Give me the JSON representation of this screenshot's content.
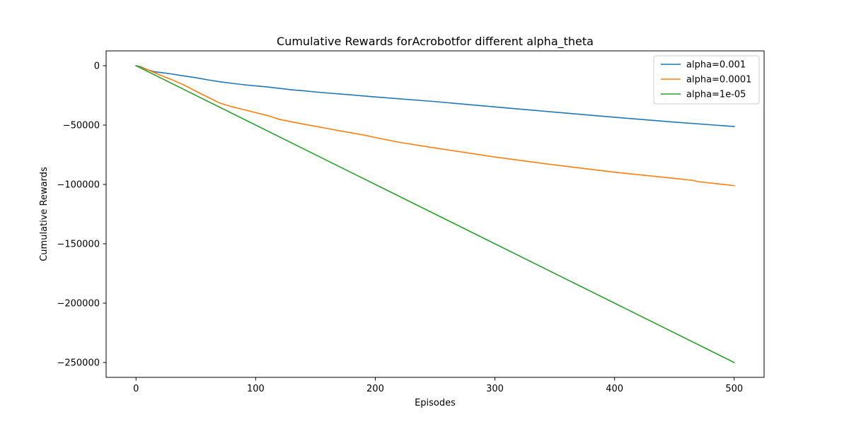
{
  "chart_data": {
    "type": "line",
    "title": "Cumulative Rewards forAcrobotfor different alpha_theta",
    "xlabel": "Episodes",
    "ylabel": "Cumulative Rewards",
    "xlim": [
      -25,
      525
    ],
    "ylim": [
      -262500,
      12500
    ],
    "x_ticks": [
      0,
      100,
      200,
      300,
      400,
      500
    ],
    "x_tick_labels": [
      "0",
      "100",
      "200",
      "300",
      "400",
      "500"
    ],
    "y_ticks": [
      0,
      -50000,
      -100000,
      -150000,
      -200000,
      -250000
    ],
    "y_tick_labels": [
      "0",
      "−50000",
      "−100000",
      "−150000",
      "−200000",
      "−250000"
    ],
    "grid": false,
    "legend_position": "upper-right",
    "series": [
      {
        "name": "alpha=0.001",
        "color": "#1f77b4",
        "points": [
          [
            0,
            0
          ],
          [
            3,
            -600
          ],
          [
            6,
            -1800
          ],
          [
            10,
            -3500
          ],
          [
            15,
            -5000
          ],
          [
            20,
            -5600
          ],
          [
            30,
            -7000
          ],
          [
            40,
            -8600
          ],
          [
            50,
            -10100
          ],
          [
            60,
            -11900
          ],
          [
            70,
            -13500
          ],
          [
            80,
            -14800
          ],
          [
            90,
            -16000
          ],
          [
            100,
            -17000
          ],
          [
            110,
            -17900
          ],
          [
            120,
            -19100
          ],
          [
            130,
            -20300
          ],
          [
            140,
            -21100
          ],
          [
            150,
            -22100
          ],
          [
            160,
            -23000
          ],
          [
            170,
            -23800
          ],
          [
            180,
            -24600
          ],
          [
            200,
            -26300
          ],
          [
            250,
            -30200
          ],
          [
            300,
            -34700
          ],
          [
            350,
            -39100
          ],
          [
            400,
            -43400
          ],
          [
            450,
            -47500
          ],
          [
            500,
            -51200
          ]
        ]
      },
      {
        "name": "alpha=0.0001",
        "color": "#ff7f0e",
        "points": [
          [
            0,
            0
          ],
          [
            10,
            -3600
          ],
          [
            20,
            -7800
          ],
          [
            30,
            -11800
          ],
          [
            40,
            -16200
          ],
          [
            50,
            -21500
          ],
          [
            60,
            -26500
          ],
          [
            70,
            -31500
          ],
          [
            80,
            -34500
          ],
          [
            90,
            -37000
          ],
          [
            100,
            -39500
          ],
          [
            110,
            -42000
          ],
          [
            120,
            -45200
          ],
          [
            130,
            -47300
          ],
          [
            140,
            -49200
          ],
          [
            150,
            -51000
          ],
          [
            160,
            -52900
          ],
          [
            170,
            -54800
          ],
          [
            180,
            -56600
          ],
          [
            190,
            -58300
          ],
          [
            200,
            -60500
          ],
          [
            220,
            -64500
          ],
          [
            250,
            -69300
          ],
          [
            300,
            -76900
          ],
          [
            350,
            -83600
          ],
          [
            400,
            -89700
          ],
          [
            450,
            -94900
          ],
          [
            465,
            -96500
          ],
          [
            470,
            -97700
          ],
          [
            500,
            -101000
          ]
        ]
      },
      {
        "name": "alpha=1e-05",
        "color": "#2ca02c",
        "points": [
          [
            0,
            0
          ],
          [
            100,
            -50000
          ],
          [
            200,
            -100000
          ],
          [
            300,
            -150000
          ],
          [
            400,
            -200000
          ],
          [
            500,
            -250000
          ]
        ]
      }
    ]
  }
}
